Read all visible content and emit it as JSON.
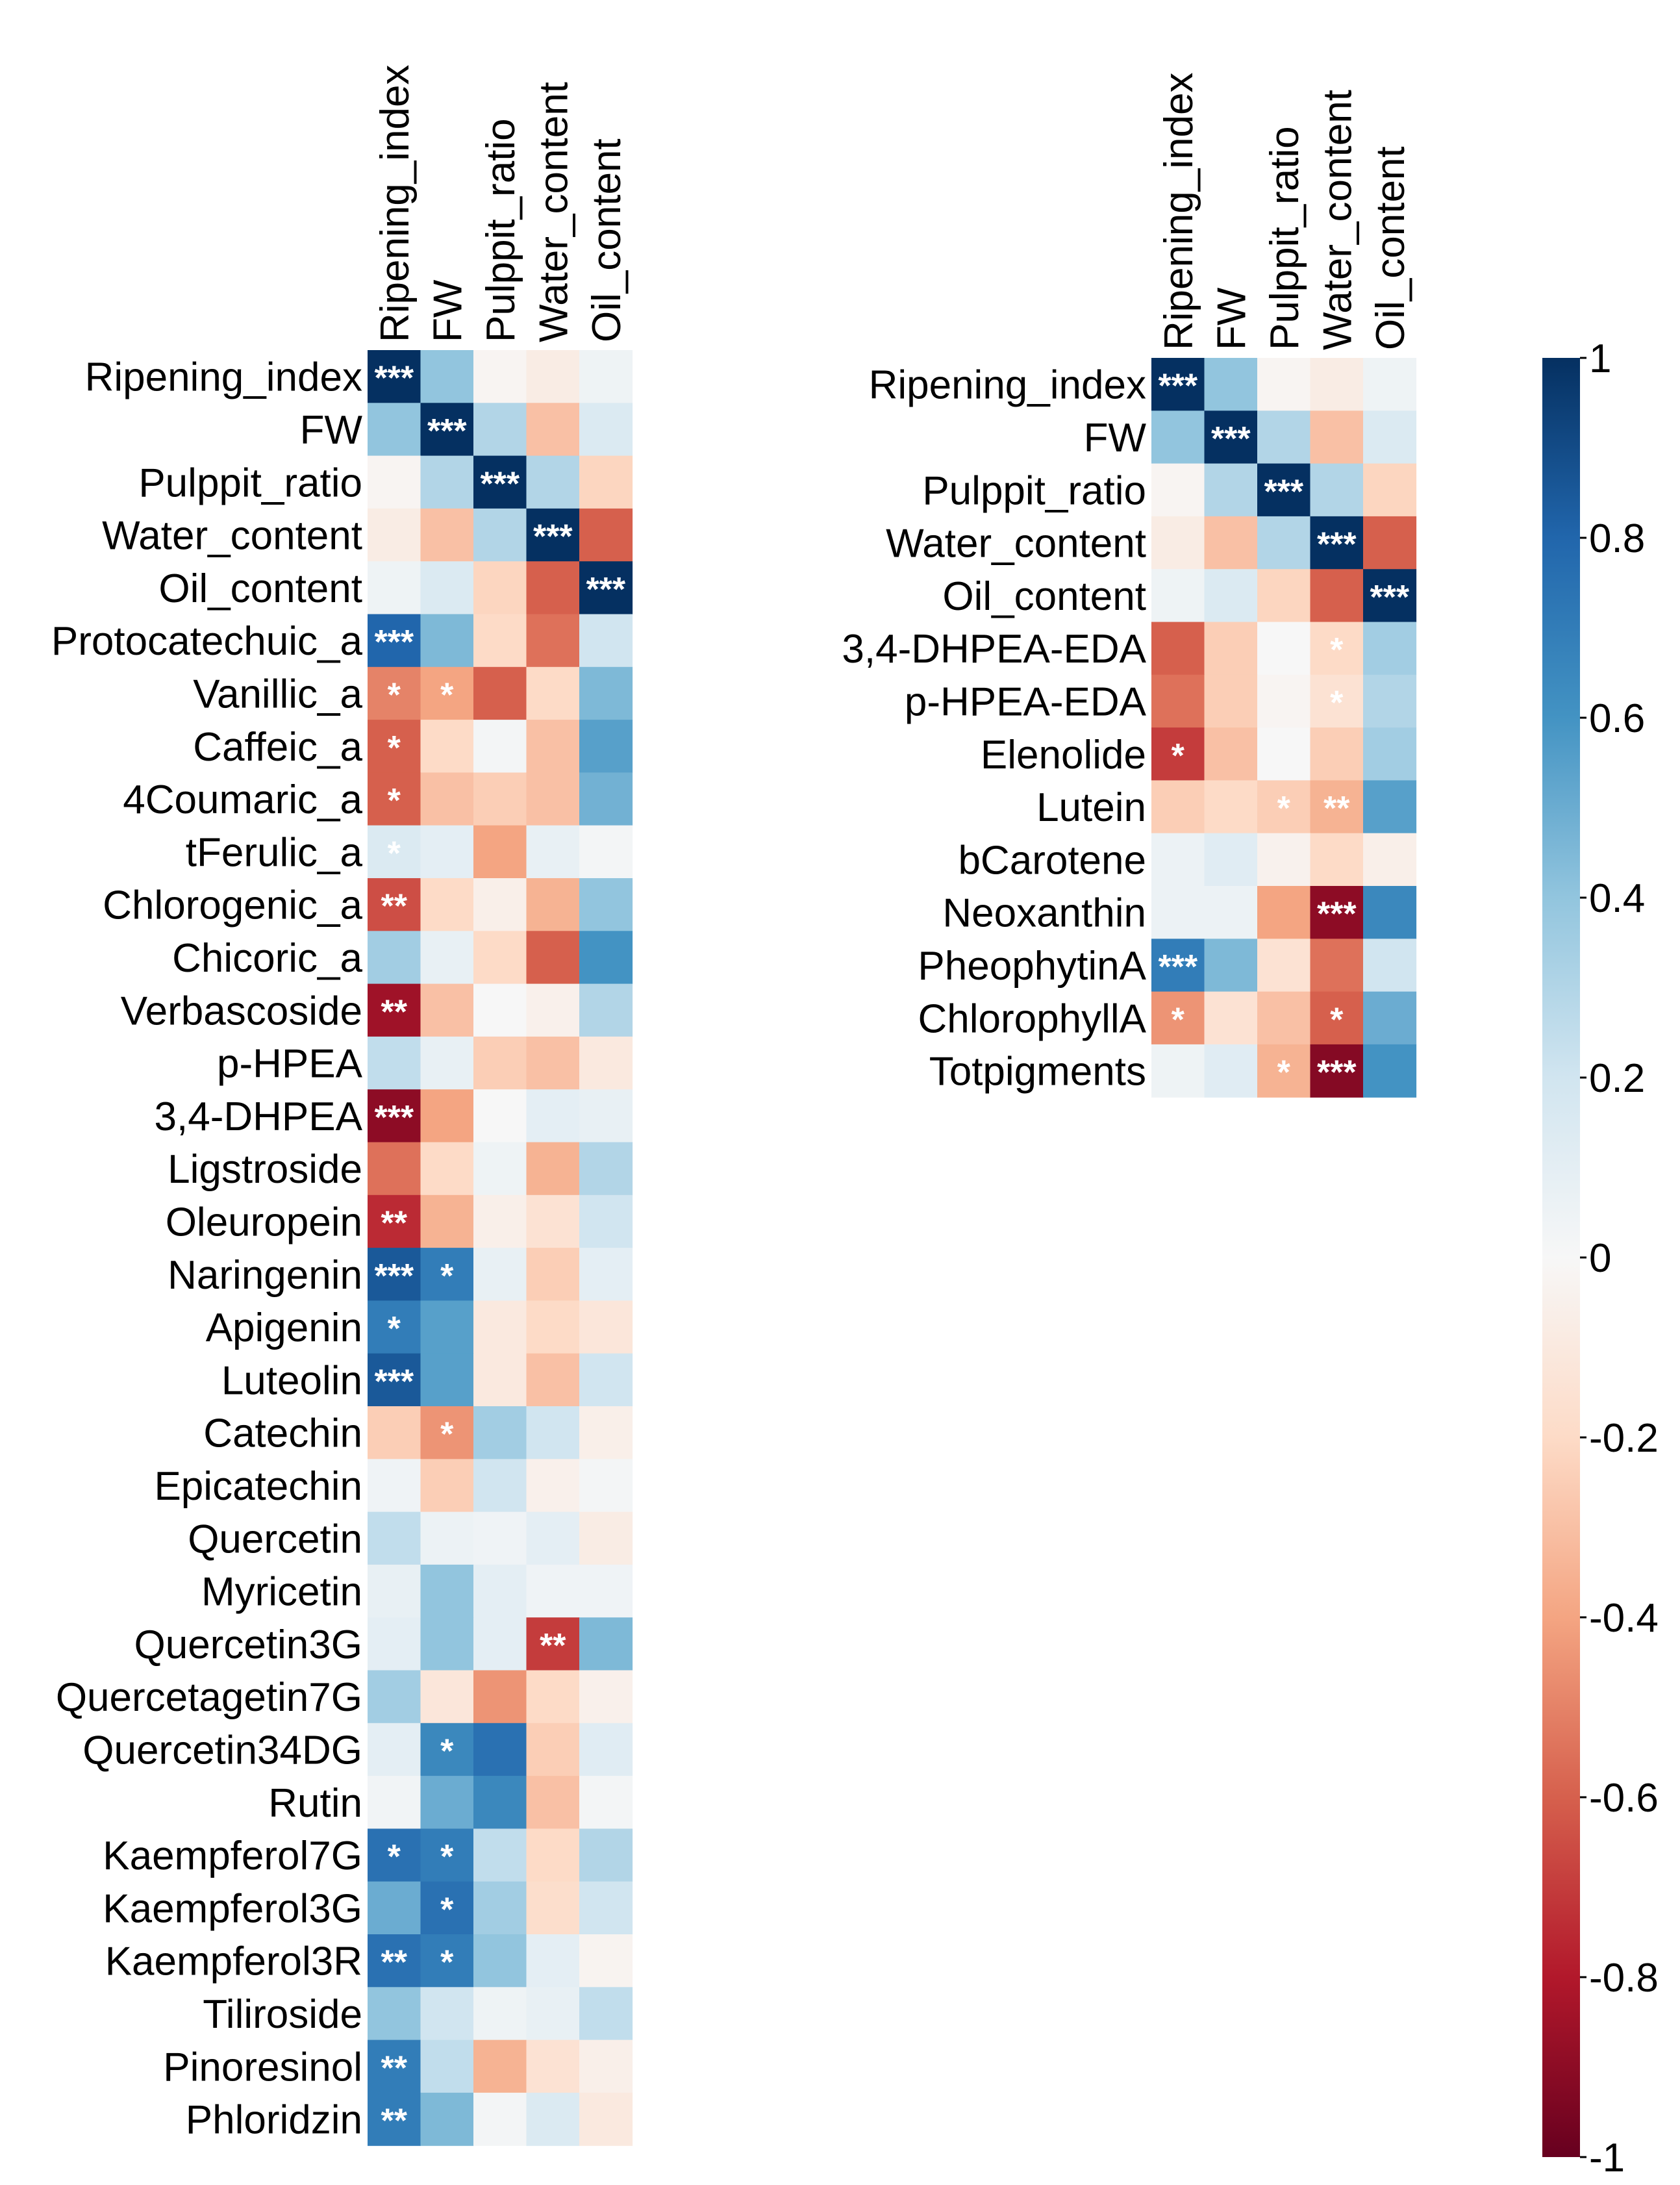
{
  "chart_data": [
    {
      "type": "heatmap",
      "name": "left-heatmap",
      "columns": [
        "Ripening_index",
        "FW",
        "Pulppit_ratio",
        "Water_content",
        "Oil_content"
      ],
      "rows": [
        "Ripening_index",
        "FW",
        "Pulppit_ratio",
        "Water_content",
        "Oil_content",
        "Protocatechuic_a",
        "Vanillic_a",
        "Caffeic_a",
        "4Coumaric_a",
        "tFerulic_a",
        "Chlorogenic_a",
        "Chicoric_a",
        "Verbascoside",
        "p-HPEA",
        "3,4-DHPEA",
        "Ligstroside",
        "Oleuropein",
        "Naringenin",
        "Apigenin",
        "Luteolin",
        "Catechin",
        "Epicatechin",
        "Quercetin",
        "Myricetin",
        "Quercetin3G",
        "Quercetagetin7G",
        "Quercetin34DG",
        "Rutin",
        "Kaempferol7G",
        "Kaempferol3G",
        "Kaempferol3R",
        "Tiliroside",
        "Pinoresinol",
        "Phloridzin"
      ],
      "values": [
        [
          1.0,
          0.4,
          -0.02,
          -0.08,
          0.05
        ],
        [
          0.4,
          1.0,
          0.3,
          -0.3,
          0.15
        ],
        [
          -0.02,
          0.3,
          1.0,
          0.3,
          -0.22
        ],
        [
          -0.08,
          -0.3,
          0.3,
          1.0,
          -0.6
        ],
        [
          0.05,
          0.15,
          -0.22,
          -0.6,
          1.0
        ],
        [
          0.8,
          0.45,
          -0.2,
          -0.55,
          0.2
        ],
        [
          -0.5,
          -0.4,
          -0.6,
          -0.2,
          0.45
        ],
        [
          -0.6,
          -0.2,
          0.02,
          -0.3,
          0.55
        ],
        [
          -0.6,
          -0.3,
          -0.25,
          -0.3,
          0.48
        ],
        [
          0.15,
          0.1,
          -0.4,
          0.08,
          0.02
        ],
        [
          -0.65,
          -0.2,
          -0.06,
          -0.35,
          0.4
        ],
        [
          0.35,
          0.08,
          -0.2,
          -0.6,
          0.6
        ],
        [
          -0.85,
          -0.3,
          0.0,
          -0.05,
          0.3
        ],
        [
          0.25,
          0.08,
          -0.25,
          -0.3,
          -0.1
        ],
        [
          -0.9,
          -0.4,
          0.0,
          0.1,
          0.08
        ],
        [
          -0.55,
          -0.2,
          0.05,
          -0.35,
          0.3
        ],
        [
          -0.75,
          -0.35,
          -0.06,
          -0.15,
          0.2
        ],
        [
          0.85,
          0.7,
          0.08,
          -0.25,
          0.1
        ],
        [
          0.7,
          0.55,
          -0.1,
          -0.2,
          -0.12
        ],
        [
          0.85,
          0.55,
          -0.1,
          -0.3,
          0.2
        ],
        [
          -0.25,
          -0.45,
          0.35,
          0.2,
          -0.06
        ],
        [
          0.04,
          -0.25,
          0.2,
          -0.05,
          0.02
        ],
        [
          0.25,
          0.06,
          0.04,
          0.1,
          -0.08
        ],
        [
          0.08,
          0.4,
          0.1,
          0.04,
          0.04
        ],
        [
          0.1,
          0.4,
          0.1,
          -0.7,
          0.45
        ],
        [
          0.35,
          -0.12,
          -0.45,
          -0.2,
          -0.05
        ],
        [
          0.1,
          0.65,
          0.75,
          -0.25,
          0.12
        ],
        [
          0.03,
          0.5,
          0.65,
          -0.3,
          0.02
        ],
        [
          0.75,
          0.7,
          0.25,
          -0.2,
          0.3
        ],
        [
          0.5,
          0.75,
          0.35,
          -0.18,
          0.2
        ],
        [
          0.75,
          0.7,
          0.4,
          0.1,
          -0.03
        ],
        [
          0.4,
          0.2,
          0.05,
          0.08,
          0.25
        ],
        [
          0.7,
          0.25,
          -0.35,
          -0.15,
          -0.06
        ],
        [
          0.7,
          0.45,
          0.02,
          0.15,
          -0.1
        ]
      ],
      "significance": [
        [
          "***",
          "",
          "",
          "",
          ""
        ],
        [
          "",
          "***",
          "",
          "",
          ""
        ],
        [
          "",
          "",
          "***",
          "",
          ""
        ],
        [
          "",
          "",
          "",
          "***",
          ""
        ],
        [
          "",
          "",
          "",
          "",
          "***"
        ],
        [
          "***",
          "",
          "",
          "",
          ""
        ],
        [
          "*",
          "*",
          "",
          "",
          ""
        ],
        [
          "*",
          "",
          "",
          "",
          ""
        ],
        [
          "*",
          "",
          "",
          "",
          ""
        ],
        [
          "*",
          "",
          "",
          "",
          ""
        ],
        [
          "**",
          "",
          "",
          "",
          ""
        ],
        [
          "",
          "",
          "",
          "",
          ""
        ],
        [
          "**",
          "",
          "",
          "",
          ""
        ],
        [
          "",
          "",
          "",
          "",
          ""
        ],
        [
          "***",
          "",
          "",
          "",
          ""
        ],
        [
          "",
          "",
          "",
          "",
          ""
        ],
        [
          "**",
          "",
          "",
          "",
          ""
        ],
        [
          "***",
          "*",
          "",
          "",
          ""
        ],
        [
          "*",
          "",
          "",
          "",
          ""
        ],
        [
          "***",
          "",
          "",
          "",
          ""
        ],
        [
          "",
          "*",
          "",
          "",
          ""
        ],
        [
          "",
          "",
          "",
          "",
          ""
        ],
        [
          "",
          "",
          "",
          "",
          ""
        ],
        [
          "",
          "",
          "",
          "",
          ""
        ],
        [
          "",
          "",
          "",
          "**",
          ""
        ],
        [
          "",
          "",
          "",
          "",
          ""
        ],
        [
          "",
          "*",
          "",
          "",
          ""
        ],
        [
          "",
          "",
          "",
          "",
          ""
        ],
        [
          "*",
          "*",
          "",
          "",
          ""
        ],
        [
          "",
          "*",
          "",
          "",
          ""
        ],
        [
          "**",
          "*",
          "",
          "",
          ""
        ],
        [
          "",
          "",
          "",
          "",
          ""
        ],
        [
          "**",
          "",
          "",
          "",
          ""
        ],
        [
          "**",
          "",
          "",
          "",
          ""
        ]
      ]
    },
    {
      "type": "heatmap",
      "name": "right-heatmap",
      "columns": [
        "Ripening_index",
        "FW",
        "Pulppit_ratio",
        "Water_content",
        "Oil_content"
      ],
      "rows": [
        "Ripening_index",
        "FW",
        "Pulppit_ratio",
        "Water_content",
        "Oil_content",
        "3,4-DHPEA-EDA",
        "p-HPEA-EDA",
        "Elenolide",
        "Lutein",
        "bCarotene",
        "Neoxanthin",
        "PheophytinA",
        "ChlorophyllA",
        "Totpigments"
      ],
      "values": [
        [
          1.0,
          0.4,
          -0.02,
          -0.08,
          0.05
        ],
        [
          0.4,
          1.0,
          0.3,
          -0.3,
          0.15
        ],
        [
          -0.02,
          0.3,
          1.0,
          0.3,
          -0.22
        ],
        [
          -0.08,
          -0.3,
          0.3,
          1.0,
          -0.6
        ],
        [
          0.05,
          0.15,
          -0.22,
          -0.6,
          1.0
        ],
        [
          -0.6,
          -0.25,
          0.0,
          -0.2,
          0.35
        ],
        [
          -0.55,
          -0.25,
          -0.02,
          -0.15,
          0.3
        ],
        [
          -0.7,
          -0.3,
          0.0,
          -0.25,
          0.35
        ],
        [
          -0.25,
          -0.2,
          -0.25,
          -0.35,
          0.55
        ],
        [
          0.06,
          0.12,
          -0.04,
          -0.2,
          -0.06
        ],
        [
          0.06,
          0.06,
          -0.4,
          -0.9,
          0.65
        ],
        [
          0.7,
          0.45,
          -0.15,
          -0.55,
          0.2
        ],
        [
          -0.45,
          -0.15,
          -0.3,
          -0.6,
          0.5
        ],
        [
          0.05,
          0.12,
          -0.35,
          -0.92,
          0.6
        ]
      ],
      "significance": [
        [
          "***",
          "",
          "",
          "",
          ""
        ],
        [
          "",
          "***",
          "",
          "",
          ""
        ],
        [
          "",
          "",
          "***",
          "",
          ""
        ],
        [
          "",
          "",
          "",
          "***",
          ""
        ],
        [
          "",
          "",
          "",
          "",
          "***"
        ],
        [
          "",
          "",
          "",
          "*",
          ""
        ],
        [
          "",
          "",
          "",
          "*",
          ""
        ],
        [
          "*",
          "",
          "",
          "",
          ""
        ],
        [
          "",
          "",
          "*",
          "**",
          ""
        ],
        [
          "",
          "",
          "",
          "",
          ""
        ],
        [
          "",
          "",
          "",
          "***",
          ""
        ],
        [
          "***",
          "",
          "",
          "",
          ""
        ],
        [
          "*",
          "",
          "",
          "*",
          ""
        ],
        [
          "",
          "",
          "*",
          "***",
          ""
        ]
      ]
    }
  ],
  "colorbar": {
    "min": -1,
    "max": 1,
    "ticks": [
      "1",
      "0.8",
      "0.6",
      "0.4",
      "0.2",
      "0",
      "-0.2",
      "-0.4",
      "-0.6",
      "-0.8",
      "-1"
    ],
    "colormap": "RdBu",
    "stops": [
      "#67001f",
      "#b2182b",
      "#d6604d",
      "#f4a582",
      "#fddbc7",
      "#f7f7f7",
      "#d1e5f0",
      "#92c5de",
      "#4393c3",
      "#2166ac",
      "#053061"
    ]
  }
}
